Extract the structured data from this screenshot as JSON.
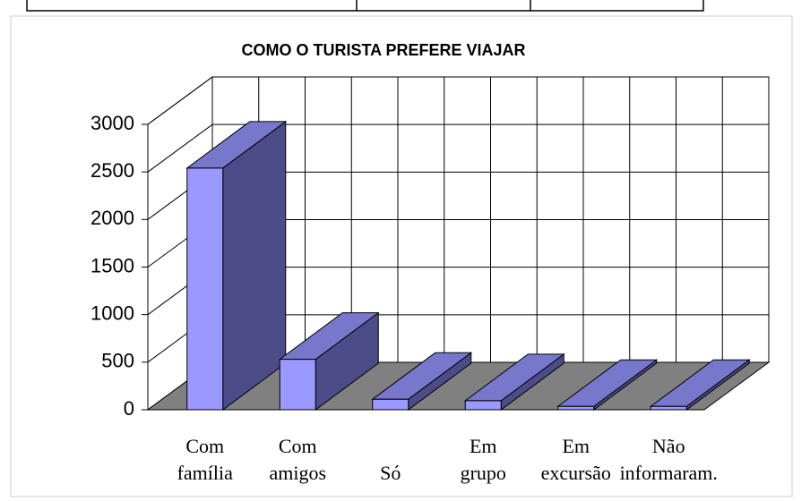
{
  "chart_data": {
    "type": "bar3d",
    "title": "COMO O TURISTA PREFERE VIAJAR",
    "categories": [
      "Com família",
      "Com amigos",
      "Só",
      "Em grupo",
      "Em excursão",
      "Não informaram."
    ],
    "values": [
      2540,
      530,
      110,
      95,
      35,
      35
    ],
    "color": "#9999ff",
    "ylim": [
      0,
      3000
    ],
    "yticks": [
      0,
      500,
      1000,
      1500,
      2000,
      2500,
      3000
    ],
    "grid": true
  }
}
